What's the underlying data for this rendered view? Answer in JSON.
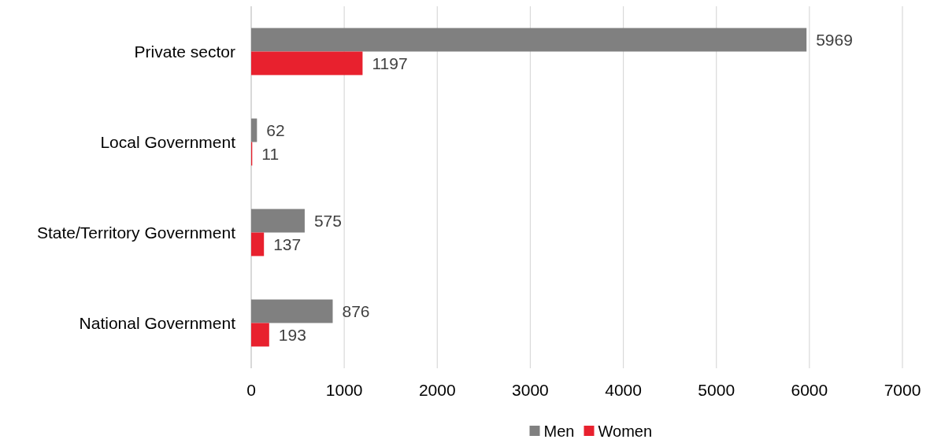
{
  "chart_data": {
    "type": "bar",
    "orientation": "horizontal",
    "categories": [
      "Private sector",
      "Local Government",
      "State/Territory Government",
      "National Government"
    ],
    "series": [
      {
        "name": "Men",
        "color": "#808080",
        "values": [
          5969,
          62,
          575,
          876
        ]
      },
      {
        "name": "Women",
        "color": "#e8212e",
        "values": [
          1197,
          11,
          137,
          193
        ]
      }
    ],
    "xlim": [
      0,
      7000
    ],
    "xticks": [
      0,
      1000,
      2000,
      3000,
      4000,
      5000,
      6000,
      7000
    ],
    "grid": "x",
    "data_labels": true,
    "legend": "bottom"
  }
}
